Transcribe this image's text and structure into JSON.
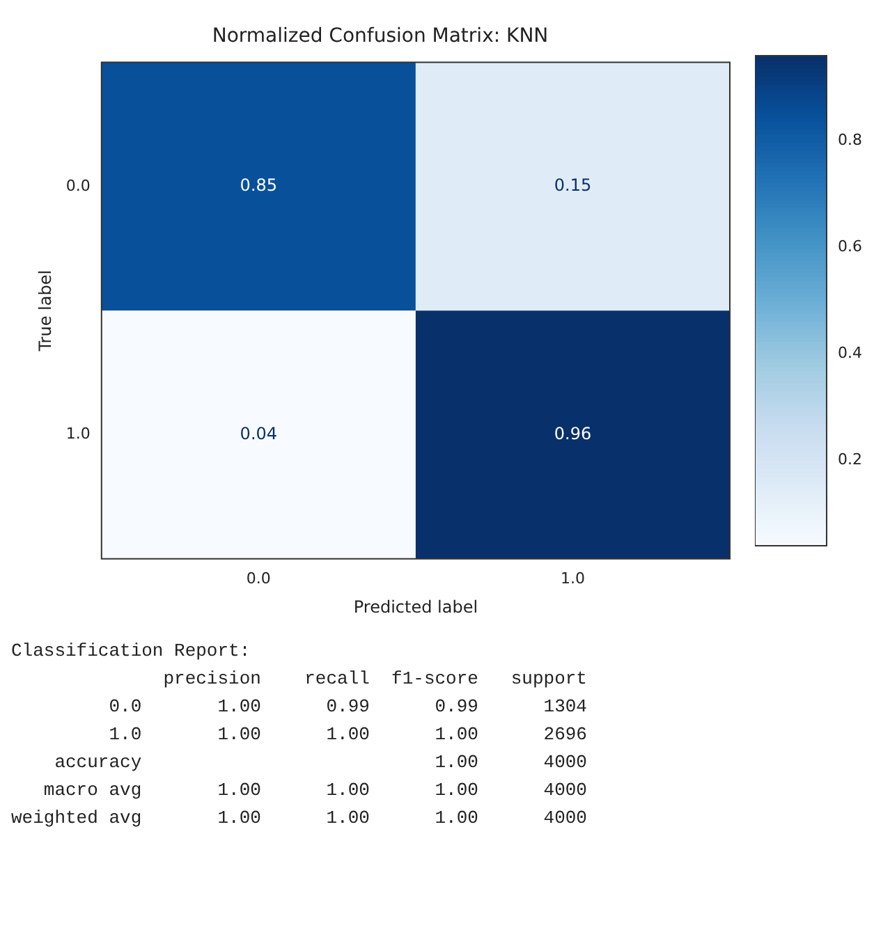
{
  "chart_data": {
    "type": "heatmap",
    "title": "Normalized Confusion Matrix: KNN",
    "xlabel": "Predicted label",
    "ylabel": "True label",
    "categories": [
      "0.0",
      "1.0"
    ],
    "y_categories": [
      "0.0",
      "1.0"
    ],
    "cells": [
      [
        0.85,
        0.15
      ],
      [
        0.04,
        0.96
      ]
    ],
    "data_labels": true,
    "clim": [
      0.04,
      0.96
    ],
    "cticks": [
      0.2,
      0.4,
      0.6,
      0.8
    ],
    "annotations": [
      "Classification Report:",
      "              precision    recall  f1-score   support",
      "         0.0       1.00      0.99      0.99      1304",
      "         1.0       1.00      1.00      1.00      2696",
      "    accuracy                           1.00      4000",
      "   macro avg       1.00      1.00      1.00      4000",
      "weighted avg       1.00      1.00      1.00      4000"
    ]
  }
}
